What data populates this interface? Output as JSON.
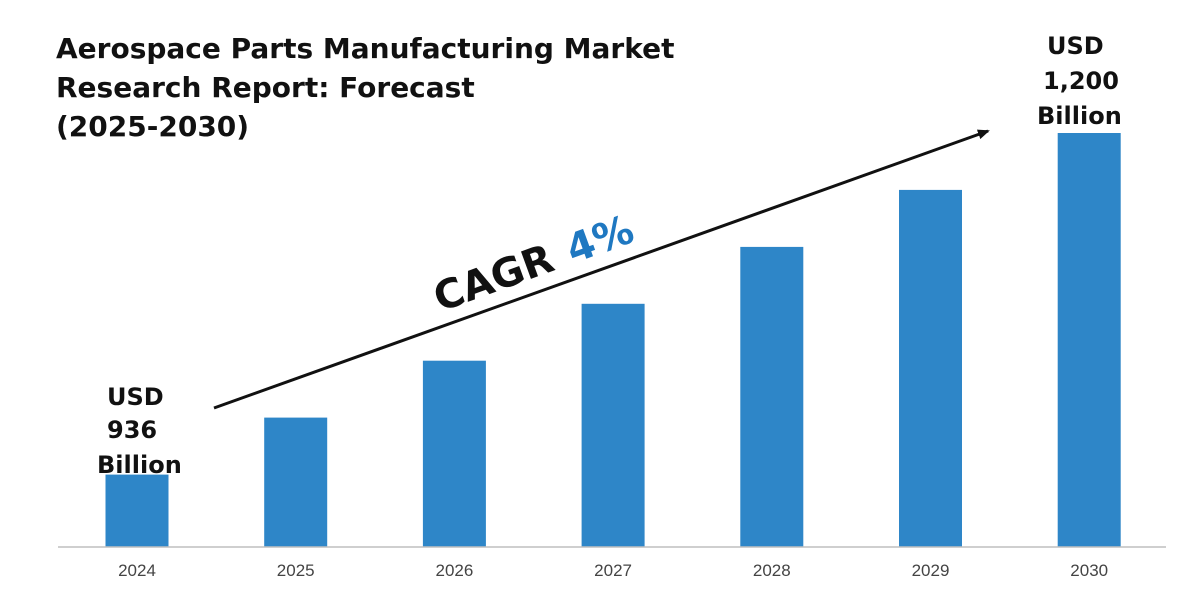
{
  "colors": {
    "bar": "#2E86C8",
    "accent": "#1F78C1",
    "text": "#111111",
    "axis": "#BFBFBF",
    "tick": "#444444"
  },
  "chart_data": {
    "type": "bar",
    "title": [
      "Aerospace Parts Manufacturing Market",
      "Research Report: Forecast",
      "(2025-2030)"
    ],
    "categories": [
      "2024",
      "2025",
      "2026",
      "2027",
      "2028",
      "2029",
      "2030"
    ],
    "values": [
      936,
      980,
      1024,
      1068,
      1112,
      1156,
      1200
    ],
    "unit": "USD Billion",
    "ylim": [
      880,
      1200
    ],
    "grid": false,
    "xlabel": "",
    "ylabel": "",
    "annotations": {
      "start": [
        "USD",
        "936",
        "Billion"
      ],
      "end": [
        "USD",
        "1,200",
        "Billion"
      ],
      "cagr_label": "CAGR",
      "cagr_value": "4%"
    }
  }
}
